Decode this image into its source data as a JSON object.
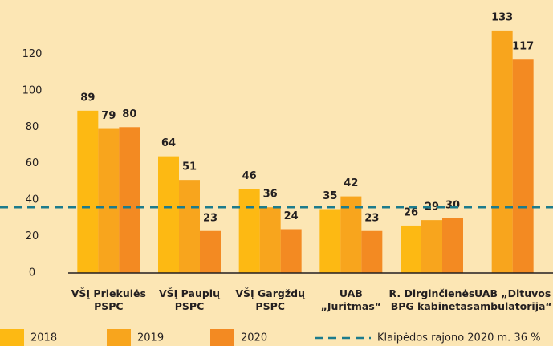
{
  "chart_data": {
    "type": "bar",
    "categories": [
      [
        "VŠĮ Priekulės",
        "PSPC"
      ],
      [
        "VŠĮ Paupių",
        "PSPC"
      ],
      [
        "VŠĮ Gargždų",
        "PSPC"
      ],
      [
        "UAB",
        "„Juritmas“"
      ],
      [
        "R. Dirginčienės",
        "BPG kabinetas"
      ],
      [
        "UAB „Dituvos",
        "ambulatorija“"
      ]
    ],
    "series": [
      {
        "name": "2018",
        "color": "#fdb913",
        "values": [
          89,
          64,
          46,
          35,
          26,
          null
        ]
      },
      {
        "name": "2019",
        "color": "#f8a51d",
        "values": [
          79,
          51,
          36,
          42,
          29,
          133
        ]
      },
      {
        "name": "2020",
        "color": "#f38a22",
        "values": [
          80,
          23,
          24,
          23,
          30,
          117
        ]
      }
    ],
    "reference_line": {
      "value": 36,
      "label": "Klaipėdos rajono 2020 m. 36 %",
      "color": "#1c7b8c"
    },
    "ylim": [
      0,
      140
    ],
    "yticks": [
      0,
      20,
      40,
      60,
      80,
      100,
      120
    ],
    "grid": false,
    "legend": "bottom"
  }
}
